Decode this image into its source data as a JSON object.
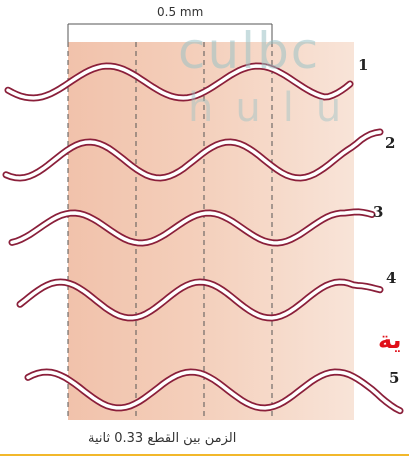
{
  "diagram": {
    "scale_label": "0.5 mm",
    "frame_labels": [
      "1",
      "2",
      "3",
      "4",
      "5"
    ],
    "caption": "الزمن بين القطع 0.33 ثانية",
    "watermark_text": "culbc",
    "watermark_text_2": "hulu",
    "red_overlay_text": "ية",
    "colors": {
      "background_band": "#f4cdb8",
      "worm_outline": "#8a1f3a",
      "worm_fill": "#ffffff",
      "guide_lines": "#555555",
      "bottom_rule": "#f2b82b"
    }
  }
}
